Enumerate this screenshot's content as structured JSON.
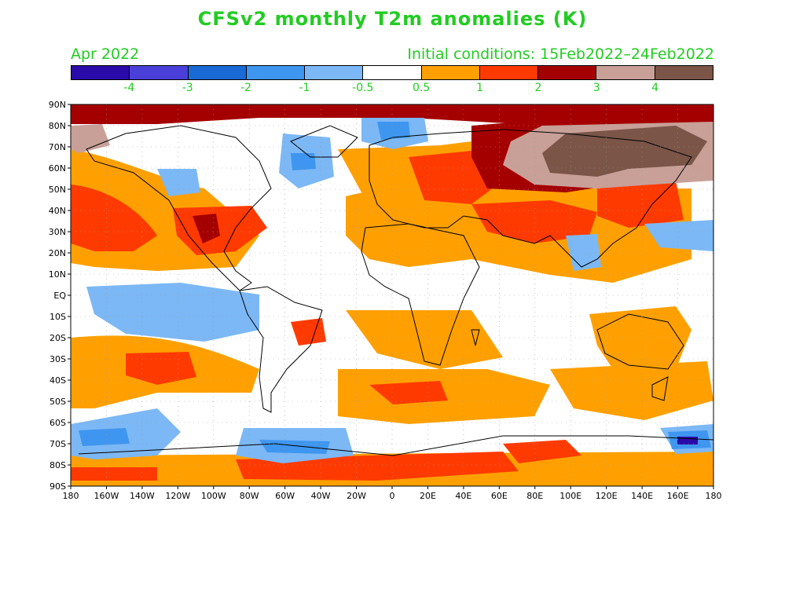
{
  "title": "CFSv2 monthly T2m anomalies (K)",
  "subtitle_left": "Apr 2022",
  "subtitle_right": "Initial conditions: 15Feb2022–24Feb2022",
  "legend": {
    "colors": [
      "#2a0aa8",
      "#4a3fd8",
      "#1a6ad6",
      "#3e96f0",
      "#7cb8f5",
      "#ffffff",
      "#ffa000",
      "#ff3a00",
      "#a50000",
      "#c8a098",
      "#7a5548"
    ],
    "labels": [
      "-4",
      "-3",
      "-2",
      "-1",
      "-0.5",
      "0.5",
      "1",
      "2",
      "3",
      "4"
    ]
  },
  "axes": {
    "lat_labels": [
      "90N",
      "80N",
      "70N",
      "60N",
      "50N",
      "40N",
      "30N",
      "20N",
      "10N",
      "EQ",
      "10S",
      "20S",
      "30S",
      "40S",
      "50S",
      "60S",
      "70S",
      "80S",
      "90S"
    ],
    "lon_labels": [
      "180",
      "160W",
      "140W",
      "120W",
      "100W",
      "80W",
      "60W",
      "40W",
      "20W",
      "0",
      "20E",
      "40E",
      "60E",
      "80E",
      "100E",
      "120E",
      "140E",
      "160E",
      "180"
    ]
  }
}
